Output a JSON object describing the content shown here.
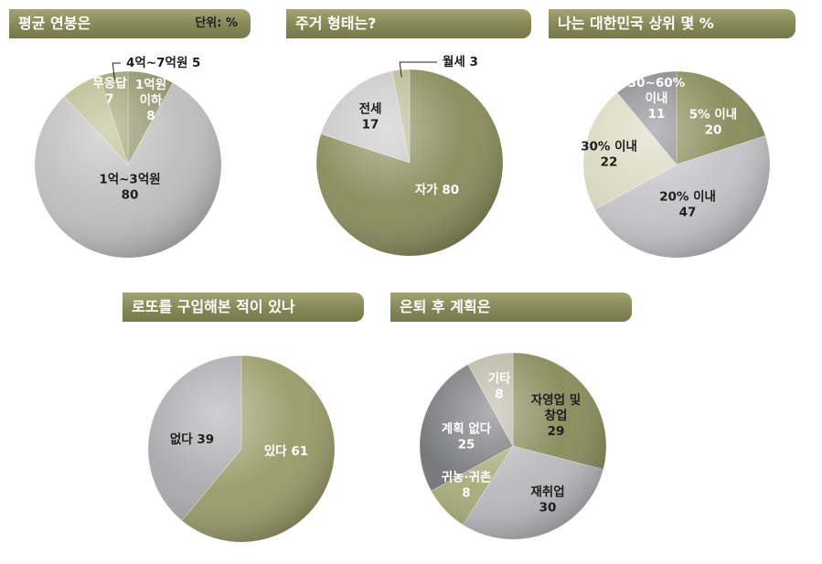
{
  "chart_data": [
    {
      "id": "salary",
      "type": "pie",
      "title": "평균 연봉은",
      "unit_label": "단위: %",
      "labels": [
        "1억원\n이하",
        "1억~3억원",
        "무응답",
        "4억~7억원"
      ],
      "values": [
        8,
        80,
        7,
        5
      ],
      "colors": [
        "#8f9167",
        "#bdbdbd",
        "#b5b88a",
        "#9b9d6e"
      ]
    },
    {
      "id": "housing",
      "type": "pie",
      "title": "주거 형태는?",
      "labels": [
        "자가",
        "전세",
        "월세"
      ],
      "values": [
        80,
        17,
        3
      ],
      "colors": [
        "#878a58",
        "#c8c6c6",
        "#b8b78f"
      ]
    },
    {
      "id": "rank",
      "type": "pie",
      "title": "나는 대한민국 상위 몇 %",
      "labels": [
        "5% 이내",
        "20% 이내",
        "30% 이내",
        "30~60%\n이내"
      ],
      "values": [
        20,
        47,
        22,
        11
      ],
      "colors": [
        "#868957",
        "#c4c3c6",
        "#d9d8c0",
        "#86868a"
      ]
    },
    {
      "id": "lotto",
      "type": "pie",
      "title": "로또를 구입해본 적이 있나",
      "labels": [
        "있다",
        "없다"
      ],
      "values": [
        61,
        39
      ],
      "colors": [
        "#999a66",
        "#a9a8ab"
      ]
    },
    {
      "id": "retire",
      "type": "pie",
      "title": "은퇴 후 계획은",
      "labels": [
        "자영업 및\n창업",
        "재취업",
        "귀농·귀촌",
        "계획 없다",
        "기타"
      ],
      "values": [
        29,
        30,
        8,
        25,
        8
      ],
      "colors": [
        "#868957",
        "#b9b8bb",
        "#a7aa78",
        "#717275",
        "#b7b5a2"
      ]
    }
  ]
}
